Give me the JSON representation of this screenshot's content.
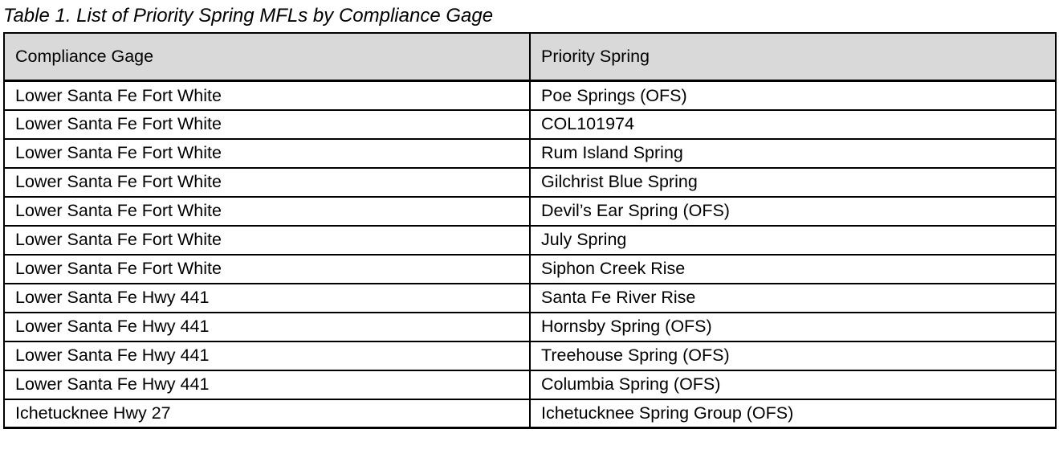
{
  "title": "Table 1. List of Priority Spring MFLs by Compliance Gage",
  "table": {
    "columns": [
      "Compliance Gage",
      "Priority Spring"
    ],
    "rows": [
      [
        "Lower Santa Fe Fort White",
        "Poe Springs (OFS)"
      ],
      [
        "Lower Santa Fe Fort White",
        "COL101974"
      ],
      [
        "Lower Santa Fe Fort White",
        "Rum Island Spring"
      ],
      [
        "Lower Santa Fe Fort White",
        "Gilchrist Blue Spring"
      ],
      [
        "Lower Santa Fe Fort White",
        "Devil’s Ear Spring (OFS)"
      ],
      [
        "Lower Santa Fe Fort White",
        "July Spring"
      ],
      [
        "Lower Santa Fe Fort White",
        "Siphon Creek Rise"
      ],
      [
        "Lower Santa Fe Hwy 441",
        "Santa Fe River Rise"
      ],
      [
        "Lower Santa Fe Hwy 441",
        "Hornsby Spring (OFS)"
      ],
      [
        "Lower Santa Fe Hwy 441",
        "Treehouse Spring (OFS)"
      ],
      [
        "Lower Santa Fe Hwy 441",
        "Columbia Spring (OFS)"
      ],
      [
        "Ichetucknee Hwy 27",
        "Ichetucknee Spring Group (OFS)"
      ]
    ],
    "colors": {
      "header_bg": "#d9d9d9",
      "border": "#000000",
      "text": "#000000",
      "page_bg": "#ffffff"
    }
  }
}
